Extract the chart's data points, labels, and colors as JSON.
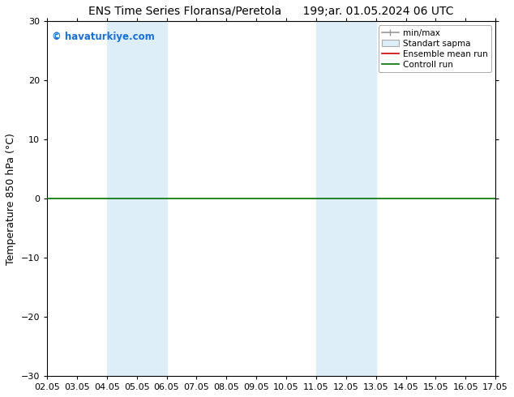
{
  "title": "ENS Time Series Floransa/Peretola      199;ar. 01.05.2024 06 UTC",
  "ylabel": "Temperature 850 hPa (°C)",
  "ylim": [
    -30,
    30
  ],
  "yticks": [
    -30,
    -20,
    -10,
    0,
    10,
    20,
    30
  ],
  "xtick_labels": [
    "02.05",
    "03.05",
    "04.05",
    "05.05",
    "06.05",
    "07.05",
    "08.05",
    "09.05",
    "10.05",
    "11.05",
    "12.05",
    "13.05",
    "14.05",
    "15.05",
    "16.05",
    "17.05"
  ],
  "watermark": "© havaturkiye.com",
  "watermark_color": "#1a6fd4",
  "shaded_regions": [
    {
      "xmin": 2.0,
      "xmax": 3.0,
      "color": "#ddeef8"
    },
    {
      "xmin": 3.0,
      "xmax": 4.0,
      "color": "#ddeef8"
    },
    {
      "xmin": 9.0,
      "xmax": 10.0,
      "color": "#ddeef8"
    },
    {
      "xmin": 10.0,
      "xmax": 11.0,
      "color": "#ddeef8"
    }
  ],
  "control_run_y": 0.0,
  "control_run_color": "#007000",
  "ensemble_mean_color": "#cc0000",
  "minmax_color": "#999999",
  "stddev_color": "#ddeef8",
  "legend_entries": [
    "min/max",
    "Standart sapma",
    "Ensemble mean run",
    "Controll run"
  ],
  "background_color": "#ffffff",
  "plot_bg_color": "#ffffff",
  "title_fontsize": 10,
  "label_fontsize": 9,
  "tick_fontsize": 8
}
